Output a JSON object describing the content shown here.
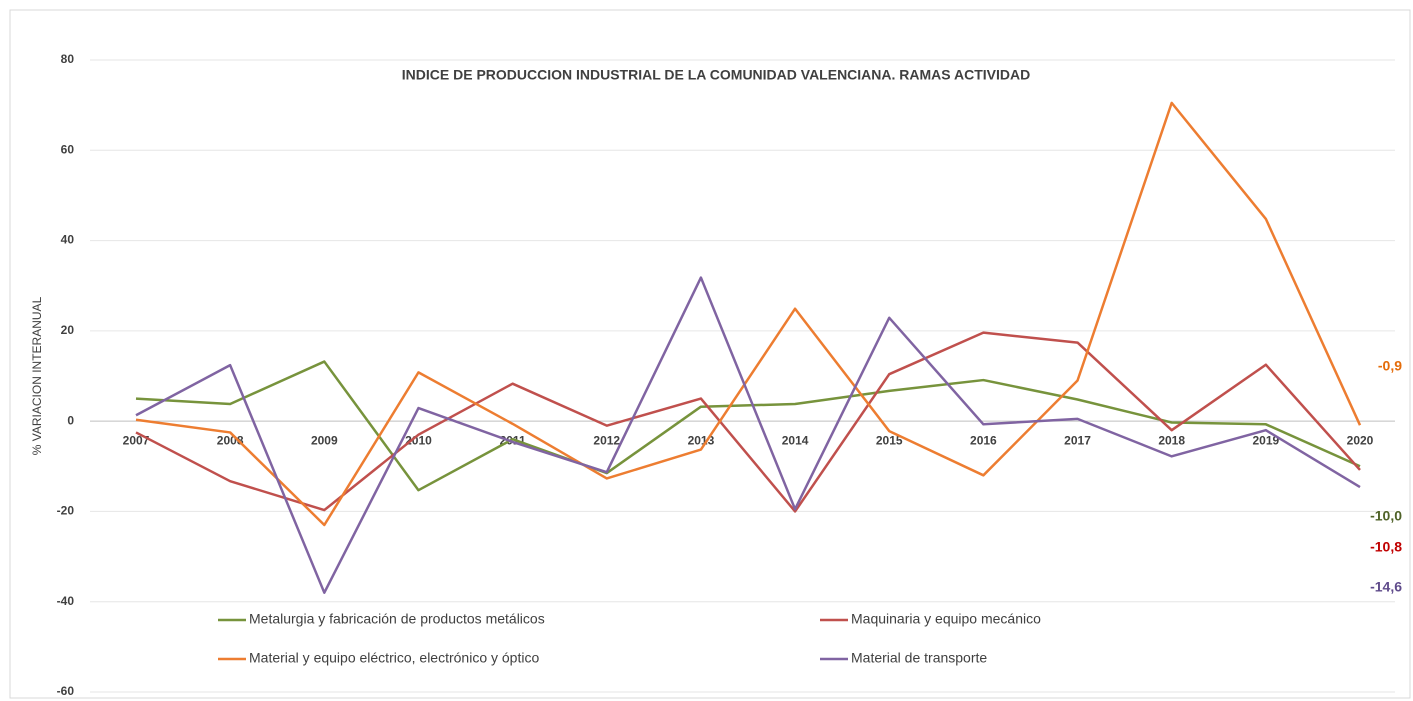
{
  "chart_data": {
    "type": "line",
    "title": "INDICE DE PRODUCCION INDUSTRIAL DE LA COMUNIDAD VALENCIANA. RAMAS ACTIVIDAD",
    "y_label": "% VARIACION INTERANUAL",
    "categories": [
      "2007",
      "2008",
      "2009",
      "2010",
      "2011",
      "2012",
      "2013",
      "2014",
      "2015",
      "2016",
      "2017",
      "2018",
      "2019",
      "2020"
    ],
    "ylim": [
      -60,
      80
    ],
    "yticks": [
      -60,
      -40,
      -20,
      0,
      20,
      40,
      60,
      80
    ],
    "grid": true,
    "legend": "bottom",
    "series": [
      {
        "name": "Metalurgia y fabricación de productos metálicos",
        "color": "#77933c",
        "label_color": "#4f6228",
        "values": [
          5.0,
          3.8,
          13.2,
          -15.3,
          -4.0,
          -11.5,
          3.2,
          3.8,
          6.7,
          9.1,
          4.8,
          -0.3,
          -0.7,
          -10.0
        ],
        "value_labels": [
          null,
          null,
          null,
          null,
          null,
          null,
          null,
          null,
          null,
          null,
          null,
          null,
          null,
          "-10,0"
        ]
      },
      {
        "name": "Maquinaria y equipo mecánico",
        "color": "#c0504d",
        "label_color": "#c00000",
        "values": [
          -2.5,
          -13.3,
          -19.7,
          -3.0,
          8.3,
          -1.0,
          5.0,
          -20.0,
          10.4,
          19.6,
          17.4,
          -2.0,
          12.5,
          -10.8
        ],
        "value_labels": [
          null,
          null,
          null,
          null,
          null,
          null,
          null,
          null,
          null,
          null,
          null,
          null,
          null,
          "-10,8"
        ]
      },
      {
        "name": "Material y equipo eléctrico, electrónico y óptico",
        "color": "#ed7d31",
        "label_color": "#e46c0a",
        "values": [
          0.3,
          -2.5,
          -23.0,
          10.8,
          -0.6,
          -12.7,
          -6.3,
          24.9,
          -2.2,
          -12.0,
          9.0,
          70.5,
          44.8,
          -0.9
        ],
        "value_labels": [
          null,
          null,
          null,
          null,
          null,
          null,
          null,
          null,
          null,
          null,
          null,
          null,
          null,
          "-0,9"
        ]
      },
      {
        "name": "Material de transporte",
        "color": "#8064a2",
        "label_color": "#5f4b8b",
        "values": [
          1.3,
          12.4,
          -38.0,
          2.9,
          -4.6,
          -11.3,
          31.8,
          -19.5,
          22.9,
          -0.7,
          0.5,
          -7.8,
          -2.0,
          -14.6
        ],
        "value_labels": [
          null,
          null,
          null,
          null,
          null,
          null,
          null,
          null,
          null,
          null,
          null,
          null,
          null,
          "-14,6"
        ]
      }
    ]
  }
}
